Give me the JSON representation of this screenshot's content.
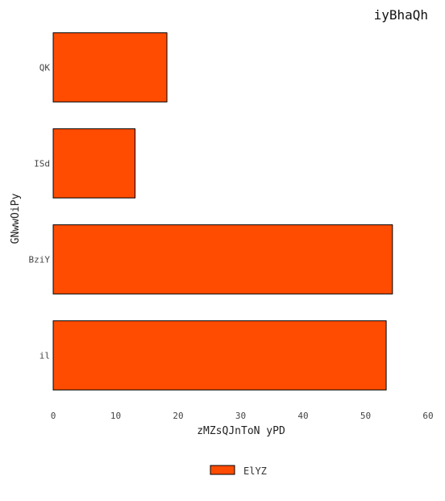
{
  "chart_data": {
    "type": "bar",
    "orientation": "horizontal",
    "title": "iyBhaQh",
    "xlabel": "zMZsQJnToN yPD",
    "ylabel": "GNwwOiPy",
    "categories": [
      "QK",
      "ISd",
      "BziY",
      "il"
    ],
    "series": [
      {
        "name": "ElYZ",
        "values": [
          18.2,
          13.1,
          54.3,
          53.3
        ],
        "color": "#ff4c00"
      }
    ],
    "xlim": [
      0,
      60
    ],
    "xticks": [
      0,
      10,
      20,
      30,
      40,
      50,
      60
    ],
    "grid": false,
    "legend_position": "bottom-center"
  }
}
